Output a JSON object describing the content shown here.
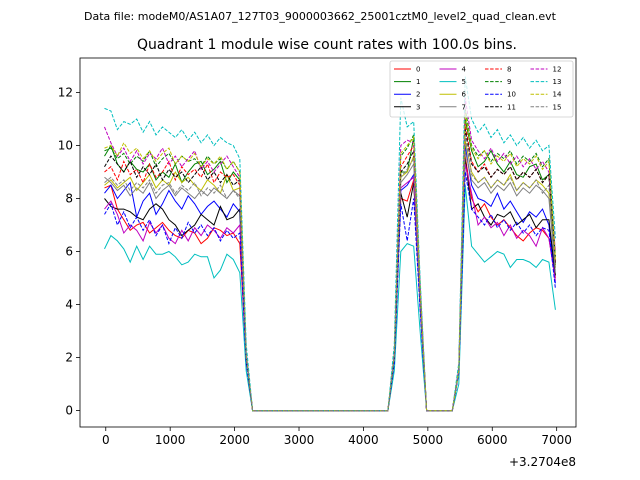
{
  "chart_data": {
    "type": "line",
    "suptitle": "Data file: modeM0/AS1A07_127T03_9000003662_25001cztM0_level2_quad_clean.evt",
    "title": "Quadrant 1 module wise count rates with 100.0s bins.",
    "xlabel": "",
    "ylabel": "",
    "x_offset_label": "+3.2704e8",
    "xlim": [
      -400,
      7300
    ],
    "ylim": [
      -0.62,
      13.3
    ],
    "xticks": [
      0,
      1000,
      2000,
      3000,
      4000,
      5000,
      6000,
      7000
    ],
    "xtick_labels": [
      "0",
      "1000",
      "2000",
      "3000",
      "4000",
      "5000",
      "6000",
      "7000"
    ],
    "yticks": [
      0,
      2,
      4,
      6,
      8,
      10,
      12
    ],
    "ytick_labels": [
      "0",
      "2",
      "4",
      "6",
      "8",
      "10",
      "12"
    ],
    "legend_position": "top-right",
    "x": [
      -20,
      80,
      180,
      280,
      380,
      480,
      580,
      680,
      780,
      880,
      980,
      1080,
      1180,
      1280,
      1380,
      1480,
      1580,
      1680,
      1780,
      1880,
      1980,
      2080,
      2180,
      2280,
      4380,
      4480,
      4580,
      4680,
      4780,
      4880,
      4980,
      5380,
      5480,
      5580,
      5680,
      5780,
      5880,
      5980,
      6080,
      6180,
      6280,
      6380,
      6480,
      6580,
      6680,
      6780,
      6880,
      6980
    ],
    "series": [
      {
        "name": "0",
        "color": "#ff0000",
        "dash": "solid",
        "values": [
          8.4,
          8.5,
          7.6,
          7.2,
          6.8,
          7.0,
          7.1,
          6.7,
          6.9,
          7.1,
          6.8,
          6.6,
          6.5,
          6.8,
          6.7,
          6.3,
          6.5,
          6.9,
          6.8,
          6.6,
          6.7,
          6.3,
          2.0,
          0.0,
          0.0,
          2.0,
          8.0,
          7.9,
          8.7,
          4.0,
          0.0,
          0.0,
          1.5,
          9.6,
          8.0,
          7.5,
          7.8,
          7.3,
          7.0,
          7.2,
          6.9,
          6.6,
          6.4,
          6.7,
          6.9,
          6.8,
          6.5,
          5.0
        ]
      },
      {
        "name": "1",
        "color": "#008000",
        "dash": "solid",
        "values": [
          9.6,
          10.0,
          9.3,
          9.0,
          9.4,
          9.1,
          9.0,
          9.3,
          8.7,
          9.0,
          8.8,
          9.3,
          8.6,
          9.0,
          9.3,
          9.4,
          8.9,
          9.1,
          9.4,
          8.6,
          9.0,
          8.7,
          2.0,
          0.0,
          0.0,
          2.0,
          9.0,
          9.0,
          10.3,
          4.5,
          0.0,
          0.0,
          1.5,
          11.0,
          9.8,
          9.2,
          9.4,
          9.8,
          9.3,
          9.0,
          9.4,
          8.9,
          8.8,
          9.2,
          9.3,
          8.7,
          8.9,
          5.5
        ]
      },
      {
        "name": "2",
        "color": "#0000ff",
        "dash": "solid",
        "values": [
          8.2,
          8.5,
          8.0,
          8.3,
          8.6,
          7.3,
          7.9,
          8.2,
          7.4,
          7.8,
          8.3,
          7.9,
          7.6,
          8.1,
          7.8,
          7.4,
          7.7,
          7.9,
          7.6,
          7.3,
          7.8,
          7.5,
          2.0,
          0.0,
          0.0,
          2.0,
          8.3,
          8.5,
          8.9,
          4.2,
          0.0,
          0.0,
          1.5,
          10.0,
          8.5,
          8.0,
          7.9,
          7.7,
          8.2,
          7.6,
          7.9,
          7.5,
          7.1,
          7.5,
          7.3,
          7.6,
          7.0,
          4.8
        ]
      },
      {
        "name": "3",
        "color": "#000000",
        "dash": "solid",
        "values": [
          8.0,
          7.7,
          7.6,
          7.6,
          7.5,
          7.3,
          7.2,
          7.6,
          7.8,
          7.6,
          7.2,
          7.0,
          6.6,
          6.8,
          7.0,
          7.4,
          7.2,
          7.0,
          7.7,
          7.2,
          7.3,
          7.6,
          2.0,
          0.0,
          0.0,
          2.0,
          8.2,
          7.3,
          8.6,
          4.0,
          0.0,
          0.0,
          1.5,
          9.5,
          7.6,
          7.8,
          7.3,
          7.0,
          7.4,
          7.3,
          7.5,
          7.0,
          7.2,
          7.4,
          6.9,
          7.2,
          7.2,
          5.1
        ]
      },
      {
        "name": "4",
        "color": "#bf00bf",
        "dash": "solid",
        "values": [
          7.6,
          7.9,
          7.4,
          6.7,
          7.0,
          6.8,
          6.4,
          7.1,
          6.7,
          7.0,
          6.5,
          6.3,
          6.8,
          6.4,
          6.9,
          6.6,
          7.0,
          6.8,
          6.5,
          6.9,
          6.7,
          7.0,
          2.0,
          0.0,
          0.0,
          2.0,
          8.4,
          8.6,
          8.8,
          4.0,
          0.0,
          0.0,
          1.5,
          9.3,
          8.2,
          7.0,
          7.3,
          6.9,
          7.1,
          6.6,
          7.0,
          6.5,
          6.8,
          6.6,
          6.2,
          6.9,
          6.5,
          4.9
        ]
      },
      {
        "name": "5",
        "color": "#00bfbf",
        "dash": "solid",
        "values": [
          6.1,
          6.6,
          6.4,
          6.1,
          5.6,
          6.2,
          5.7,
          6.2,
          5.9,
          5.9,
          6.0,
          5.8,
          5.5,
          5.6,
          5.9,
          5.8,
          5.8,
          5.0,
          5.3,
          5.9,
          5.7,
          5.2,
          1.5,
          0.0,
          0.0,
          1.5,
          6.0,
          6.3,
          6.2,
          3.0,
          0.0,
          0.0,
          1.0,
          8.5,
          6.2,
          5.9,
          5.6,
          5.8,
          6.0,
          5.9,
          5.4,
          5.7,
          5.7,
          5.6,
          5.4,
          5.7,
          5.6,
          3.8
        ]
      },
      {
        "name": "6",
        "color": "#bfbf00",
        "dash": "solid",
        "values": [
          8.5,
          8.7,
          8.4,
          8.6,
          8.8,
          8.3,
          8.6,
          8.9,
          8.4,
          8.7,
          8.5,
          9.0,
          8.6,
          8.8,
          8.5,
          8.3,
          8.7,
          8.5,
          8.2,
          8.9,
          8.3,
          8.4,
          2.0,
          0.0,
          0.0,
          2.0,
          8.8,
          9.0,
          9.6,
          4.3,
          0.0,
          0.0,
          1.5,
          10.2,
          9.0,
          8.6,
          8.8,
          8.4,
          8.7,
          8.5,
          8.9,
          8.3,
          8.6,
          8.4,
          8.7,
          8.5,
          8.2,
          5.4
        ]
      },
      {
        "name": "7",
        "color": "#808080",
        "dash": "solid",
        "values": [
          8.8,
          8.6,
          8.3,
          8.5,
          8.1,
          8.4,
          8.2,
          8.6,
          8.0,
          8.3,
          8.5,
          8.1,
          8.4,
          8.2,
          8.0,
          8.3,
          8.1,
          8.4,
          8.2,
          8.0,
          8.3,
          8.1,
          2.0,
          0.0,
          0.0,
          2.0,
          8.6,
          8.9,
          9.3,
          4.2,
          0.0,
          0.0,
          1.5,
          9.8,
          8.7,
          8.4,
          8.6,
          8.2,
          8.5,
          8.3,
          8.6,
          8.1,
          8.4,
          8.2,
          8.5,
          8.3,
          8.0,
          5.2
        ]
      },
      {
        "name": "8",
        "color": "#ff0000",
        "dash": "dashed",
        "values": [
          9.0,
          9.2,
          8.7,
          9.4,
          8.9,
          9.1,
          8.6,
          9.3,
          8.8,
          9.0,
          9.4,
          8.7,
          9.2,
          8.9,
          9.1,
          8.8,
          9.3,
          8.6,
          9.0,
          8.8,
          8.9,
          8.5,
          2.0,
          0.0,
          0.0,
          2.0,
          9.2,
          9.6,
          10.0,
          4.4,
          0.0,
          0.0,
          1.5,
          10.8,
          9.4,
          9.0,
          9.3,
          8.8,
          9.1,
          8.9,
          9.2,
          8.7,
          9.0,
          8.8,
          9.1,
          8.6,
          8.9,
          5.6
        ]
      },
      {
        "name": "9",
        "color": "#008000",
        "dash": "dashed",
        "values": [
          9.8,
          9.9,
          9.5,
          9.7,
          9.3,
          9.6,
          9.4,
          9.8,
          9.2,
          9.5,
          9.7,
          9.3,
          9.6,
          9.4,
          9.5,
          9.2,
          9.6,
          9.3,
          9.5,
          9.1,
          9.4,
          9.0,
          2.0,
          0.0,
          0.0,
          2.0,
          9.6,
          9.9,
          10.4,
          4.6,
          0.0,
          0.0,
          1.5,
          11.4,
          10.0,
          9.6,
          9.8,
          9.4,
          9.7,
          9.5,
          9.8,
          9.3,
          9.6,
          9.4,
          9.7,
          9.2,
          9.5,
          5.8
        ]
      },
      {
        "name": "10",
        "color": "#0000ff",
        "dash": "dashed",
        "values": [
          7.4,
          7.8,
          7.0,
          7.5,
          6.9,
          7.3,
          6.8,
          7.2,
          6.6,
          7.0,
          6.3,
          6.9,
          6.5,
          7.1,
          6.7,
          7.0,
          6.6,
          6.9,
          6.4,
          6.8,
          6.5,
          6.7,
          1.8,
          0.0,
          0.0,
          1.8,
          7.8,
          6.4,
          8.0,
          3.8,
          0.0,
          0.0,
          1.4,
          9.0,
          7.6,
          7.3,
          7.0,
          7.4,
          6.9,
          7.2,
          6.8,
          7.1,
          6.7,
          7.0,
          6.6,
          6.9,
          6.8,
          4.6
        ]
      },
      {
        "name": "11",
        "color": "#000000",
        "dash": "dashed",
        "values": [
          9.2,
          9.6,
          9.3,
          9.0,
          9.4,
          8.8,
          9.2,
          8.9,
          9.3,
          8.7,
          9.1,
          8.8,
          9.0,
          8.6,
          8.9,
          9.2,
          8.7,
          9.0,
          8.6,
          8.9,
          8.5,
          8.7,
          2.0,
          0.0,
          0.0,
          2.0,
          9.0,
          9.3,
          9.8,
          4.4,
          0.0,
          0.0,
          1.5,
          10.6,
          9.3,
          9.0,
          9.2,
          8.8,
          9.1,
          8.9,
          9.2,
          8.7,
          9.0,
          8.8,
          9.1,
          8.6,
          8.9,
          5.5
        ]
      },
      {
        "name": "12",
        "color": "#bf00bf",
        "dash": "dashed",
        "values": [
          10.7,
          10.1,
          9.6,
          9.9,
          9.4,
          9.8,
          9.3,
          9.7,
          9.5,
          9.9,
          9.3,
          9.6,
          9.2,
          9.5,
          9.8,
          9.1,
          9.4,
          9.0,
          9.3,
          9.6,
          9.2,
          8.8,
          2.2,
          0.0,
          0.0,
          2.2,
          10.0,
          10.2,
          10.1,
          4.8,
          0.0,
          0.0,
          1.6,
          11.8,
          10.2,
          9.8,
          9.5,
          9.9,
          9.4,
          9.7,
          9.3,
          9.6,
          9.2,
          9.5,
          9.1,
          9.4,
          9.0,
          6.0
        ]
      },
      {
        "name": "13",
        "color": "#00bfbf",
        "dash": "dashed",
        "values": [
          11.4,
          11.3,
          10.6,
          10.9,
          10.8,
          11.0,
          10.5,
          10.9,
          10.4,
          10.7,
          10.5,
          10.3,
          10.6,
          10.2,
          10.5,
          10.1,
          10.4,
          10.0,
          10.3,
          10.1,
          10.0,
          9.5,
          2.5,
          0.0,
          0.0,
          2.5,
          11.8,
          10.7,
          10.9,
          5.0,
          0.0,
          0.0,
          1.8,
          12.6,
          11.0,
          10.5,
          10.8,
          10.3,
          10.6,
          10.1,
          10.4,
          10.0,
          10.3,
          9.9,
          10.2,
          9.8,
          10.0,
          6.5
        ]
      },
      {
        "name": "14",
        "color": "#bfbf00",
        "dash": "dashed",
        "values": [
          9.9,
          10.0,
          9.6,
          10.1,
          9.7,
          9.9,
          9.5,
          9.8,
          9.4,
          9.7,
          9.9,
          9.3,
          9.6,
          9.4,
          9.7,
          9.2,
          9.5,
          9.3,
          9.6,
          9.1,
          9.4,
          9.0,
          2.1,
          0.0,
          0.0,
          2.1,
          9.7,
          10.0,
          10.3,
          4.6,
          0.0,
          0.0,
          1.5,
          11.2,
          9.9,
          9.5,
          9.8,
          9.3,
          9.6,
          9.4,
          9.7,
          9.2,
          9.5,
          9.3,
          9.6,
          9.1,
          9.4,
          5.7
        ]
      },
      {
        "name": "15",
        "color": "#808080",
        "dash": "dashed",
        "values": [
          8.6,
          8.8,
          8.5,
          8.7,
          8.3,
          8.6,
          8.4,
          8.7,
          8.2,
          8.5,
          8.6,
          8.2,
          8.5,
          8.3,
          8.6,
          8.1,
          8.4,
          8.2,
          8.5,
          8.0,
          8.3,
          8.0,
          2.0,
          0.0,
          0.0,
          2.0,
          8.8,
          9.1,
          9.5,
          4.3,
          0.0,
          0.0,
          1.5,
          10.4,
          8.9,
          8.6,
          8.8,
          8.4,
          8.7,
          8.5,
          8.8,
          8.3,
          8.6,
          8.4,
          8.7,
          8.2,
          8.5,
          5.3
        ]
      }
    ]
  }
}
